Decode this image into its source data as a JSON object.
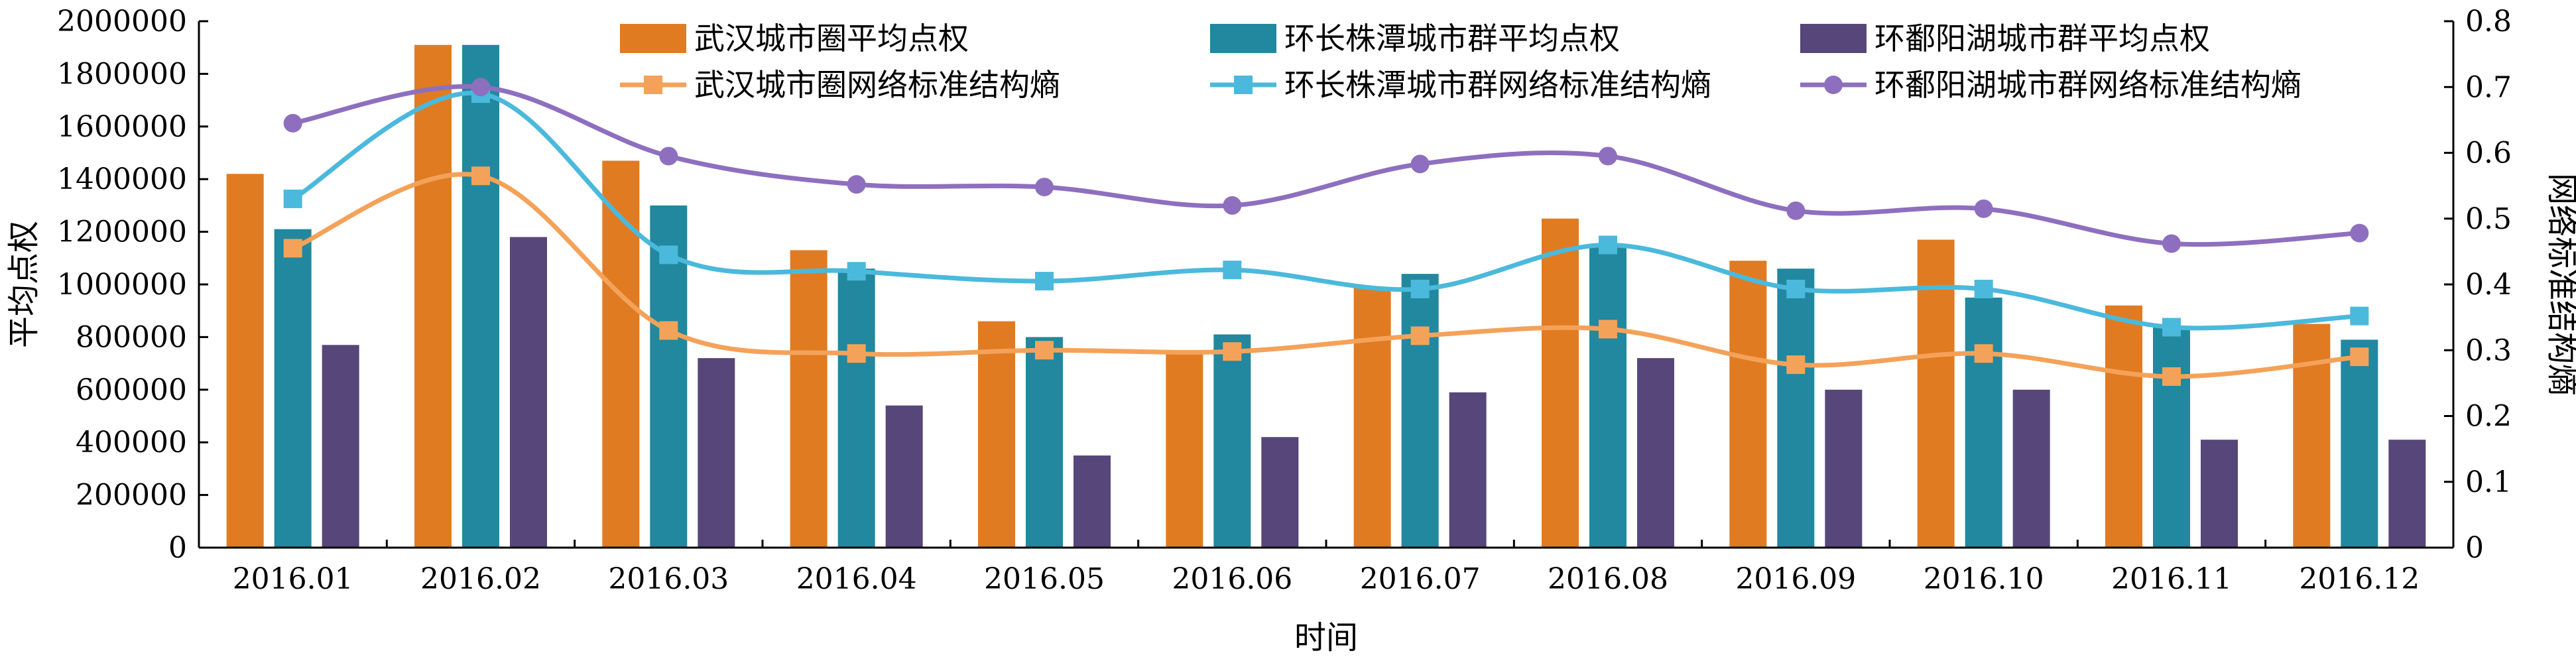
{
  "chart_data": {
    "type": "bar+line",
    "categories": [
      "2016.01",
      "2016.02",
      "2016.03",
      "2016.04",
      "2016.05",
      "2016.06",
      "2016.07",
      "2016.08",
      "2016.09",
      "2016.10",
      "2016.11",
      "2016.12"
    ],
    "xlabel": "时间",
    "ylabel_left": "平均点权",
    "ylabel_right": "网络标准结构熵",
    "ylim_left": [
      0,
      2000000
    ],
    "yticks_left": [
      "0",
      "200000",
      "400000",
      "600000",
      "800000",
      "1000000",
      "1200000",
      "1400000",
      "1600000",
      "1800000",
      "2000000"
    ],
    "ylim_right": [
      0,
      0.8
    ],
    "yticks_right": [
      "0",
      "0.1",
      "0.2",
      "0.3",
      "0.4",
      "0.5",
      "0.6",
      "0.7",
      "0.8"
    ],
    "grid": false,
    "legend_position": "top",
    "bar_series": [
      {
        "name": "武汉城市圈平均点权",
        "color": "#E07B22",
        "values": [
          1420000,
          1910000,
          1470000,
          1130000,
          860000,
          740000,
          990000,
          1250000,
          1090000,
          1170000,
          920000,
          850000
        ]
      },
      {
        "name": "环长株潭城市群平均点权",
        "color": "#21889F",
        "values": [
          1210000,
          1910000,
          1300000,
          1060000,
          800000,
          810000,
          1040000,
          1150000,
          1060000,
          950000,
          840000,
          790000
        ]
      },
      {
        "name": "环鄱阳湖城市群平均点权",
        "color": "#574679",
        "values": [
          770000,
          1180000,
          720000,
          540000,
          350000,
          420000,
          590000,
          720000,
          600000,
          600000,
          410000,
          410000
        ]
      }
    ],
    "line_series": [
      {
        "name": "武汉城市圈网络标准结构熵",
        "color": "#F4A259",
        "marker": "square",
        "values": [
          0.455,
          0.565,
          0.33,
          0.295,
          0.3,
          0.298,
          0.322,
          0.332,
          0.278,
          0.295,
          0.26,
          0.29
        ]
      },
      {
        "name": "环长株潭城市群网络标准结构熵",
        "color": "#4BB9DC",
        "marker": "square",
        "values": [
          0.53,
          0.69,
          0.445,
          0.42,
          0.405,
          0.422,
          0.393,
          0.46,
          0.393,
          0.393,
          0.335,
          0.352
        ]
      },
      {
        "name": "环鄱阳湖城市群网络标准结构熵",
        "color": "#8E6FBF",
        "marker": "circle",
        "values": [
          0.645,
          0.7,
          0.595,
          0.552,
          0.548,
          0.52,
          0.583,
          0.595,
          0.512,
          0.515,
          0.462,
          0.478
        ]
      }
    ]
  }
}
